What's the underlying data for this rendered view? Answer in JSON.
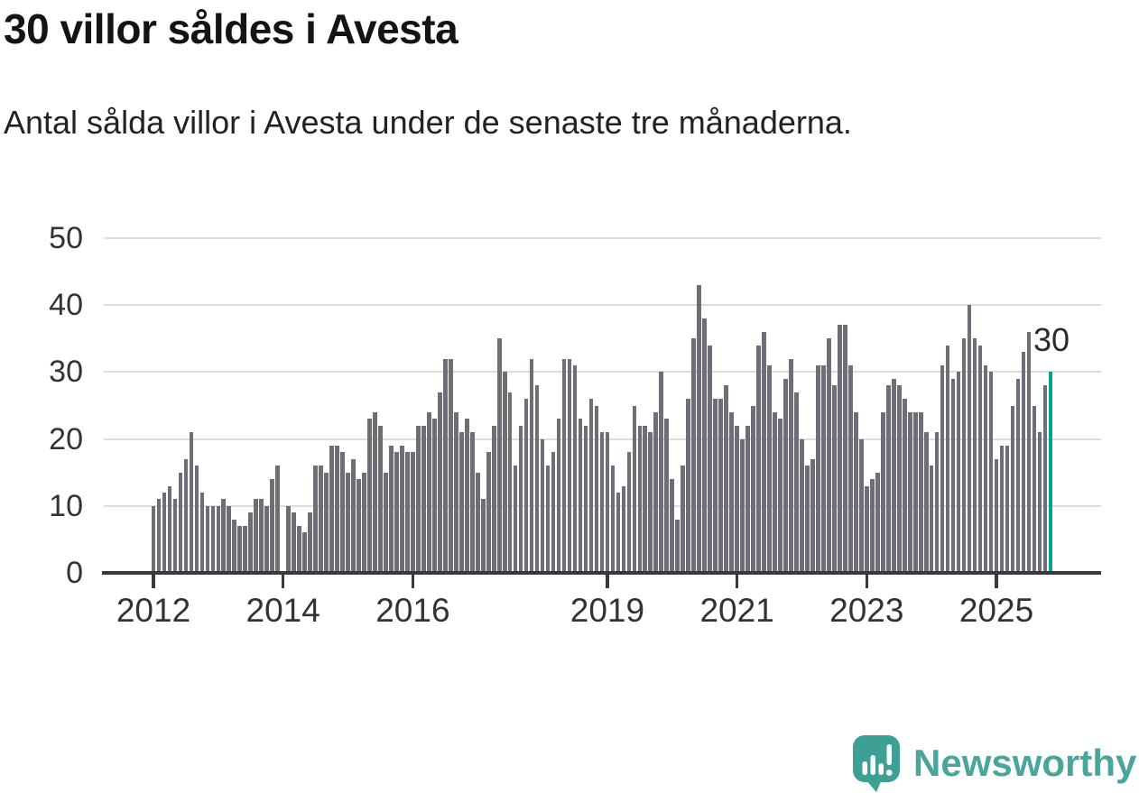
{
  "title": "30 villor såldes i Avesta",
  "subtitle": "Antal sålda villor i Avesta under de senaste tre månaderna.",
  "annotation": {
    "label": "30"
  },
  "branding": {
    "name": "Newsworthy",
    "icon": "speech-bubble-with-bar-chart-and-exclamation"
  },
  "colors": {
    "bar": "#6e6e77",
    "highlight_bar": "#0a9f93",
    "axis": "#38383d",
    "grid": "#dcdcdc",
    "text": "#222222",
    "logo": "#4aa59c"
  },
  "chart_data": {
    "type": "bar",
    "title": "30 villor såldes i Avesta",
    "subtitle": "Antal sålda villor i Avesta under de senaste tre månaderna.",
    "x_frequency": "monthly",
    "x_start": "2012-01",
    "x_end": "2025-11",
    "x_tick_labels": [
      "2012",
      "2014",
      "2016",
      "2019",
      "2021",
      "2023",
      "2025"
    ],
    "x_tick_month_indices": [
      0,
      24,
      48,
      84,
      108,
      132,
      156
    ],
    "y_ticks": [
      0,
      10,
      20,
      30,
      40,
      50
    ],
    "ylim": [
      0,
      50
    ],
    "grid": "horizontal",
    "legend": "none",
    "highlight_last_bar": true,
    "last_value_label": "30",
    "values": [
      10,
      11,
      12,
      13,
      11,
      15,
      17,
      21,
      16,
      12,
      10,
      10,
      10,
      11,
      10,
      8,
      7,
      7,
      9,
      11,
      11,
      10,
      14,
      16,
      0,
      10,
      9,
      7,
      6,
      9,
      16,
      16,
      15,
      19,
      19,
      18,
      15,
      17,
      14,
      15,
      23,
      24,
      22,
      15,
      19,
      18,
      19,
      18,
      18,
      22,
      22,
      24,
      23,
      27,
      32,
      32,
      24,
      21,
      23,
      21,
      15,
      11,
      18,
      22,
      35,
      30,
      27,
      16,
      22,
      26,
      32,
      28,
      20,
      16,
      18,
      23,
      32,
      32,
      31,
      23,
      22,
      26,
      25,
      21,
      21,
      16,
      12,
      13,
      18,
      25,
      22,
      22,
      21,
      24,
      30,
      23,
      14,
      8,
      16,
      26,
      35,
      43,
      38,
      34,
      26,
      26,
      28,
      24,
      22,
      20,
      22,
      25,
      34,
      36,
      31,
      24,
      23,
      29,
      32,
      27,
      20,
      16,
      17,
      31,
      31,
      35,
      28,
      37,
      37,
      31,
      24,
      20,
      13,
      14,
      15,
      24,
      28,
      29,
      28,
      26,
      24,
      24,
      24,
      21,
      16,
      21,
      31,
      34,
      29,
      30,
      35,
      40,
      35,
      34,
      31,
      30,
      17,
      19,
      19,
      25,
      29,
      33,
      36,
      25,
      21,
      28,
      30
    ]
  }
}
